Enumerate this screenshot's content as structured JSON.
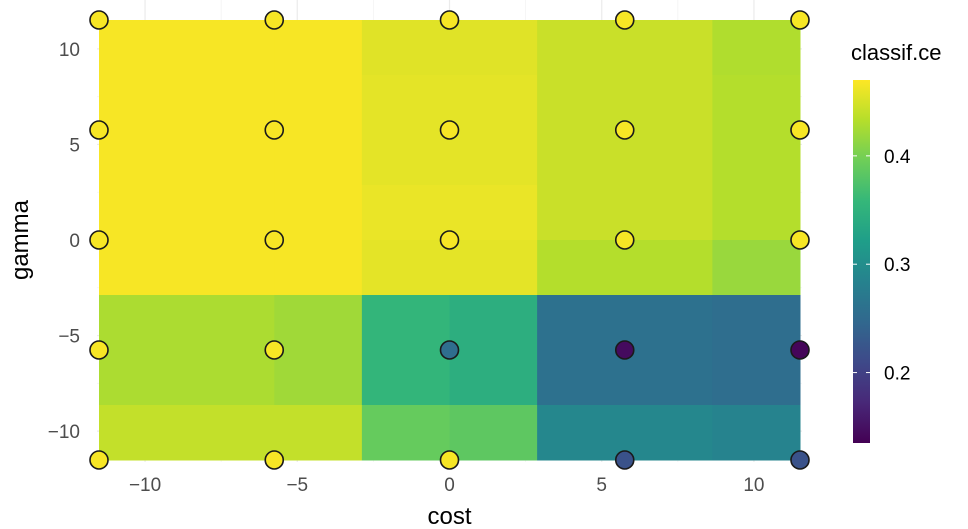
{
  "chart_data": {
    "type": "heatmap",
    "xlabel": "cost",
    "ylabel": "gamma",
    "xlim": [
      -11.5129,
      11.5129
    ],
    "ylim": [
      -11.5129,
      11.5129
    ],
    "x_ticks": [
      -10,
      -5,
      0,
      5,
      10
    ],
    "x_tick_labels": [
      "−10",
      "−5",
      "0",
      "5",
      "10"
    ],
    "y_ticks": [
      -10,
      -5,
      0,
      5,
      10
    ],
    "y_tick_labels": [
      "−10",
      "−5",
      "0",
      "5",
      "10"
    ],
    "grid": true,
    "legend": {
      "title": "classif.ce",
      "placement": "right",
      "min": 0.135,
      "max": 0.47,
      "ticks": [
        0.2,
        0.3,
        0.4
      ],
      "tick_labels": [
        "0.2",
        "0.3",
        "0.4"
      ],
      "colormap": "viridis"
    },
    "cells": [
      {
        "x0": -11.5129,
        "x1": -5.7565,
        "y0": 8.6347,
        "y1": 11.5129,
        "value": 0.467
      },
      {
        "x0": -5.7565,
        "x1": -2.8782,
        "y0": 8.6347,
        "y1": 11.5129,
        "value": 0.467
      },
      {
        "x0": -2.8782,
        "x1": 2.8782,
        "y0": 8.6347,
        "y1": 11.5129,
        "value": 0.455
      },
      {
        "x0": 2.8782,
        "x1": 8.6347,
        "y0": 8.6347,
        "y1": 11.5129,
        "value": 0.443
      },
      {
        "x0": 8.6347,
        "x1": 11.5129,
        "y0": 8.6347,
        "y1": 11.5129,
        "value": 0.43
      },
      {
        "x0": -11.5129,
        "x1": -5.7565,
        "y0": 2.8782,
        "y1": 8.6347,
        "value": 0.467
      },
      {
        "x0": -5.7565,
        "x1": -2.8782,
        "y0": 2.8782,
        "y1": 8.6347,
        "value": 0.467
      },
      {
        "x0": -2.8782,
        "x1": 2.8782,
        "y0": 2.8782,
        "y1": 8.6347,
        "value": 0.457
      },
      {
        "x0": 2.8782,
        "x1": 8.6347,
        "y0": 2.8782,
        "y1": 8.6347,
        "value": 0.443
      },
      {
        "x0": 8.6347,
        "x1": 11.5129,
        "y0": 2.8782,
        "y1": 8.6347,
        "value": 0.432
      },
      {
        "x0": -11.5129,
        "x1": -5.7565,
        "y0": 0.0,
        "y1": 2.8782,
        "value": 0.467
      },
      {
        "x0": -5.7565,
        "x1": -2.8782,
        "y0": 0.0,
        "y1": 2.8782,
        "value": 0.467
      },
      {
        "x0": -2.8782,
        "x1": 2.8782,
        "y0": 0.0,
        "y1": 2.8782,
        "value": 0.46
      },
      {
        "x0": 2.8782,
        "x1": 8.6347,
        "y0": 0.0,
        "y1": 2.8782,
        "value": 0.443
      },
      {
        "x0": 8.6347,
        "x1": 11.5129,
        "y0": 0.0,
        "y1": 2.8782,
        "value": 0.432
      },
      {
        "x0": -11.5129,
        "x1": -5.7565,
        "y0": -2.8782,
        "y1": 0.0,
        "value": 0.467
      },
      {
        "x0": -5.7565,
        "x1": -2.8782,
        "y0": -2.8782,
        "y1": 0.0,
        "value": 0.467
      },
      {
        "x0": -2.8782,
        "x1": 2.8782,
        "y0": -2.8782,
        "y1": 0.0,
        "value": 0.457
      },
      {
        "x0": 2.8782,
        "x1": 8.6347,
        "y0": -2.8782,
        "y1": 0.0,
        "value": 0.432
      },
      {
        "x0": 8.6347,
        "x1": 11.5129,
        "y0": -2.8782,
        "y1": 0.0,
        "value": 0.418
      },
      {
        "x0": -11.5129,
        "x1": -5.7565,
        "y0": -8.6347,
        "y1": -2.8782,
        "value": 0.428
      },
      {
        "x0": -5.7565,
        "x1": -2.8782,
        "y0": -8.6347,
        "y1": -2.8782,
        "value": 0.422
      },
      {
        "x0": -2.8782,
        "x1": 0.0,
        "y0": -8.6347,
        "y1": -2.8782,
        "value": 0.355
      },
      {
        "x0": 0.0,
        "x1": 2.8782,
        "y0": -8.6347,
        "y1": -2.8782,
        "value": 0.345
      },
      {
        "x0": 2.8782,
        "x1": 8.6347,
        "y0": -8.6347,
        "y1": -2.8782,
        "value": 0.26
      },
      {
        "x0": 8.6347,
        "x1": 11.5129,
        "y0": -8.6347,
        "y1": -2.8782,
        "value": 0.255
      },
      {
        "x0": -11.5129,
        "x1": -5.7565,
        "y0": -11.5129,
        "y1": -8.6347,
        "value": 0.44
      },
      {
        "x0": -5.7565,
        "x1": -2.8782,
        "y0": -11.5129,
        "y1": -8.6347,
        "value": 0.44
      },
      {
        "x0": -2.8782,
        "x1": 0.0,
        "y0": -11.5129,
        "y1": -8.6347,
        "value": 0.39
      },
      {
        "x0": 0.0,
        "x1": 2.8782,
        "y0": -11.5129,
        "y1": -8.6347,
        "value": 0.385
      },
      {
        "x0": 2.8782,
        "x1": 8.6347,
        "y0": -11.5129,
        "y1": -8.6347,
        "value": 0.29
      },
      {
        "x0": 8.6347,
        "x1": 11.5129,
        "y0": -11.5129,
        "y1": -8.6347,
        "value": 0.285
      }
    ],
    "points": [
      {
        "x": -11.5129,
        "y": 11.5129,
        "value": 0.467
      },
      {
        "x": -5.7565,
        "y": 11.5129,
        "value": 0.467
      },
      {
        "x": 0.0,
        "y": 11.5129,
        "value": 0.467
      },
      {
        "x": 5.7565,
        "y": 11.5129,
        "value": 0.467
      },
      {
        "x": 11.5129,
        "y": 11.5129,
        "value": 0.467
      },
      {
        "x": -11.5129,
        "y": 5.7565,
        "value": 0.467
      },
      {
        "x": -5.7565,
        "y": 5.7565,
        "value": 0.467
      },
      {
        "x": 0.0,
        "y": 5.7565,
        "value": 0.467
      },
      {
        "x": 5.7565,
        "y": 5.7565,
        "value": 0.467
      },
      {
        "x": 11.5129,
        "y": 5.7565,
        "value": 0.467
      },
      {
        "x": -11.5129,
        "y": 0.0,
        "value": 0.467
      },
      {
        "x": -5.7565,
        "y": 0.0,
        "value": 0.467
      },
      {
        "x": 0.0,
        "y": 0.0,
        "value": 0.467
      },
      {
        "x": 5.7565,
        "y": 0.0,
        "value": 0.467
      },
      {
        "x": 11.5129,
        "y": 0.0,
        "value": 0.467
      },
      {
        "x": -11.5129,
        "y": -5.7565,
        "value": 0.467
      },
      {
        "x": -5.7565,
        "y": -5.7565,
        "value": 0.467
      },
      {
        "x": 0.0,
        "y": -5.7565,
        "value": 0.255
      },
      {
        "x": 5.7565,
        "y": -5.7565,
        "value": 0.145
      },
      {
        "x": 11.5129,
        "y": -5.7565,
        "value": 0.14
      },
      {
        "x": -11.5129,
        "y": -11.5129,
        "value": 0.467
      },
      {
        "x": -5.7565,
        "y": -11.5129,
        "value": 0.467
      },
      {
        "x": 0.0,
        "y": -11.5129,
        "value": 0.467
      },
      {
        "x": 5.7565,
        "y": -11.5129,
        "value": 0.22
      },
      {
        "x": 11.5129,
        "y": -11.5129,
        "value": 0.22
      }
    ]
  }
}
